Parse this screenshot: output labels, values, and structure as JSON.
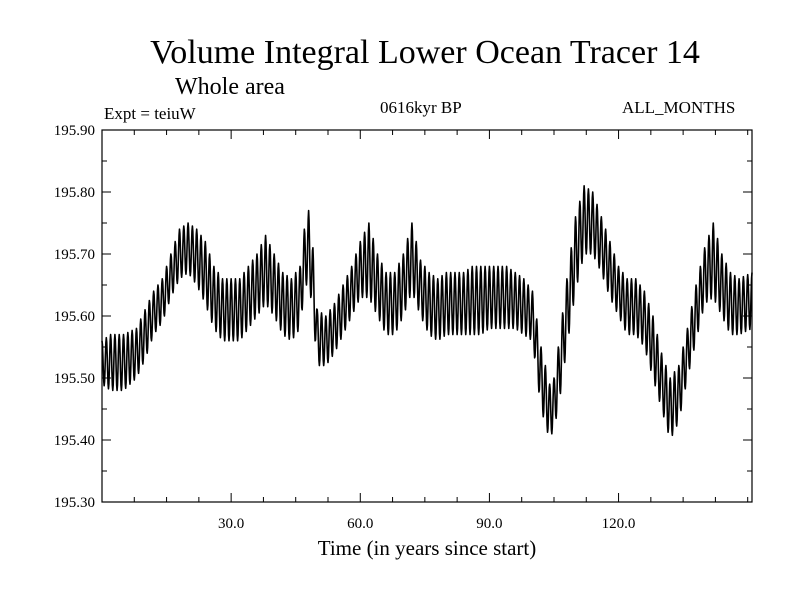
{
  "chart_data": {
    "type": "line",
    "title": "Volume Integral Lower Ocean Tracer 14",
    "subtitle": "Whole area",
    "experiment": "Expt = teiuW",
    "period": "0616kyr BP",
    "months": "ALL_MONTHS",
    "xlabel": "Time (in years since start)",
    "ylabel": "",
    "xlim": [
      0,
      151
    ],
    "ylim": [
      195.3,
      195.9
    ],
    "x_ticks": [
      30,
      60,
      90,
      120
    ],
    "x_tick_labels": [
      "30.0",
      "60.0",
      "90.0",
      "120.0"
    ],
    "y_ticks": [
      195.3,
      195.4,
      195.5,
      195.6,
      195.7,
      195.8,
      195.9
    ],
    "y_tick_labels": [
      "195.30",
      "195.40",
      "195.50",
      "195.60",
      "195.70",
      "195.80",
      "195.90"
    ],
    "grid": false,
    "series": [
      {
        "name": "Volume Integral Lower Ocean Tracer 14",
        "envelope_x": [
          0,
          2,
          5,
          8,
          10,
          12,
          14,
          16,
          18,
          20,
          22,
          24,
          26,
          28,
          30,
          32,
          34,
          36,
          38,
          40,
          42,
          44,
          46,
          47,
          48,
          49,
          50,
          52,
          54,
          56,
          58,
          60,
          62,
          64,
          66,
          68,
          70,
          72,
          74,
          76,
          78,
          80,
          82,
          84,
          86,
          88,
          90,
          92,
          94,
          96,
          98,
          100,
          102,
          104,
          105,
          106,
          108,
          110,
          112,
          114,
          116,
          118,
          120,
          122,
          124,
          126,
          128,
          130,
          132,
          134,
          136,
          138,
          140,
          142,
          144,
          146,
          148,
          151
        ],
        "envelope_lower": [
          195.49,
          195.48,
          195.48,
          195.5,
          195.53,
          195.57,
          195.59,
          195.63,
          195.66,
          195.67,
          195.65,
          195.62,
          195.58,
          195.56,
          195.56,
          195.56,
          195.58,
          195.6,
          195.62,
          195.6,
          195.57,
          195.56,
          195.58,
          195.64,
          195.66,
          195.6,
          195.52,
          195.52,
          195.54,
          195.57,
          195.6,
          195.63,
          195.63,
          195.6,
          195.57,
          195.57,
          195.6,
          195.64,
          195.6,
          195.57,
          195.56,
          195.57,
          195.57,
          195.57,
          195.57,
          195.57,
          195.58,
          195.58,
          195.58,
          195.58,
          195.57,
          195.56,
          195.45,
          195.4,
          195.42,
          195.45,
          195.55,
          195.64,
          195.7,
          195.7,
          195.67,
          195.63,
          195.6,
          195.57,
          195.57,
          195.55,
          195.5,
          195.45,
          195.4,
          195.43,
          195.5,
          195.56,
          195.62,
          195.63,
          195.6,
          195.57,
          195.57,
          195.58
        ],
        "envelope_upper": [
          195.56,
          195.57,
          195.57,
          195.58,
          195.61,
          195.64,
          195.66,
          195.7,
          195.74,
          195.75,
          195.74,
          195.72,
          195.68,
          195.66,
          195.66,
          195.66,
          195.68,
          195.7,
          195.73,
          195.7,
          195.67,
          195.66,
          195.68,
          195.74,
          195.77,
          195.71,
          195.61,
          195.6,
          195.62,
          195.65,
          195.68,
          195.72,
          195.75,
          195.7,
          195.67,
          195.67,
          195.7,
          195.75,
          195.69,
          195.67,
          195.66,
          195.67,
          195.67,
          195.67,
          195.68,
          195.68,
          195.68,
          195.68,
          195.68,
          195.67,
          195.66,
          195.64,
          195.55,
          195.49,
          195.5,
          195.55,
          195.66,
          195.76,
          195.81,
          195.8,
          195.76,
          195.72,
          195.68,
          195.66,
          195.66,
          195.64,
          195.6,
          195.54,
          195.5,
          195.52,
          195.58,
          195.65,
          195.71,
          195.75,
          195.7,
          195.67,
          195.66,
          195.67
        ],
        "cycles_per_year": 1
      }
    ]
  }
}
